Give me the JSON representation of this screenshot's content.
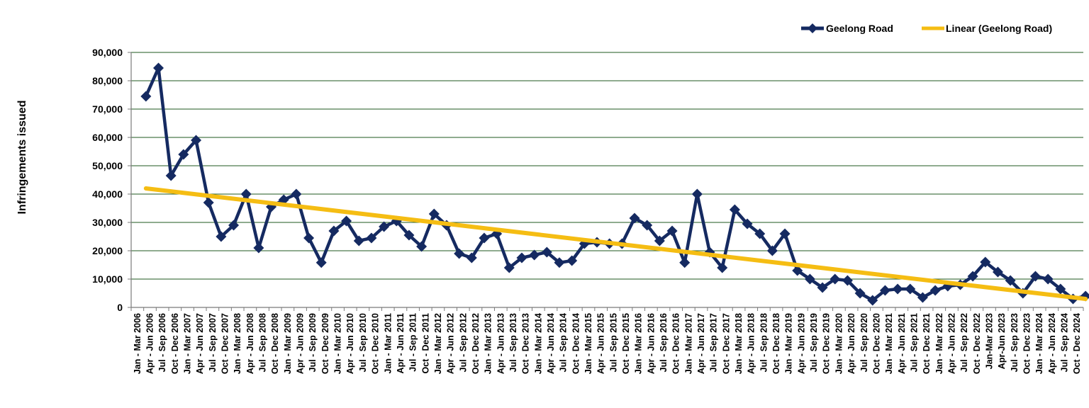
{
  "chart_data": {
    "type": "line",
    "ylabel": "Infringements issued",
    "xlabel": "",
    "ylim": [
      0,
      90000
    ],
    "yticks": [
      0,
      10000,
      20000,
      30000,
      40000,
      50000,
      60000,
      70000,
      80000,
      90000
    ],
    "ytick_labels": [
      "0",
      "10,000",
      "20,000",
      "30,000",
      "40,000",
      "50,000",
      "60,000",
      "70,000",
      "80,000",
      "90,000"
    ],
    "grid": "horizontal",
    "legend_position": "top-right",
    "colors": {
      "series": "#152a61",
      "trend": "#f5bd13",
      "grid": "#1f5a1f"
    },
    "categories": [
      "Jan - Mar 2006",
      "Apr - Jun 2006",
      "Jul - Sep 2006",
      "Oct - Dec 2006",
      "Jan - Mar 2007",
      "Apr - Jun 2007",
      "Jul - Sep 2007",
      "Oct - Dec 2007",
      "Jan - Mar 2008",
      "Apr - Jun 2008",
      "Jul - Sep 2008",
      "Oct - Dec 2008",
      "Jan - Mar 2009",
      "Apr - Jun 2009",
      "Jul - Sep 2009",
      "Oct - Dec 2009",
      "Jan - Mar 2010",
      "Apr - Jun 2010",
      "Jul - Sep 2010",
      "Oct - Dec 2010",
      "Jan - Mar 2011",
      "Apr - Jun 2011",
      "Jul - Sep 2011",
      "Oct - Dec 2011",
      "Jan - Mar 2012",
      "Apr - Jun 2012",
      "Jul - Sep 2012",
      "Oct - Dec 2012",
      "Jan - Mar 2013",
      "Apr - Jun 2013",
      "Jul - Sep 2013",
      "Oct - Dec 2013",
      "Jan - Mar 2014",
      "Apr - Jun 2014",
      "Jul - Sep 2014",
      "Oct - Dec 2014",
      "Jan - Mar 2015",
      "Apr - Jun 2015",
      "Jul - Sep 2015",
      "Oct - Dec 2015",
      "Jan - Mar 2016",
      "Apr - Jun 2016",
      "Jul - Sep 2016",
      "Oct - Dec 2016",
      "Jan - Mar 2017",
      "Apr - Jun 2017",
      "Jul - Sep 2017",
      "Oct - Dec 2017",
      "Jan - Mar 2018",
      "Apr - Jun 2018",
      "Jul - Sep 2018",
      "Oct - Dec 2018",
      "Jan - Mar 2019",
      "Apr - Jun 2019",
      "Jul - Sep 2019",
      "Oct - Dec 2019",
      "Jan - Mar 2020",
      "Apr - Jun 2020",
      "Jul - Sep 2020",
      "Oct - Dec 2020",
      "Jan - Mar 2021",
      "Apr - Jun 2021",
      "Jul - Sep 2021",
      "Oct - Dec 2021",
      "Jan - Mar 2022",
      "Apr - Jun 2022",
      "Jul - Sep 2022",
      "Oct - Dec 2022",
      "Jan-Mar 2023",
      "Apr-Jun 2023",
      "Jul - Sep 2023",
      "Oct - Dec 2023",
      "Jan - Mar 2024",
      "Apr - Jun 2024",
      "Jul - Sep 2024",
      "Oct - Dec 2024"
    ],
    "series": [
      {
        "name": "Geelong Road",
        "values": [
          74500,
          84500,
          46500,
          54000,
          59000,
          37000,
          25000,
          29000,
          40000,
          21000,
          35500,
          38000,
          40000,
          24500,
          15800,
          27000,
          30500,
          23500,
          24500,
          28500,
          30500,
          25500,
          21500,
          33000,
          29000,
          19000,
          17500,
          24500,
          26000,
          14000,
          17500,
          18500,
          19500,
          15800,
          16500,
          22500,
          23000,
          22500,
          22500,
          31500,
          29000,
          23500,
          27000,
          15800,
          40000,
          19500,
          14000,
          34500,
          29500,
          26000,
          20000,
          26000,
          13000,
          10000,
          7000,
          10000,
          9500,
          5000,
          2500,
          6000,
          6500,
          6500,
          3500,
          6000,
          7500,
          8000,
          11000,
          16000,
          12500,
          9500,
          5000,
          11000,
          10000,
          6500,
          3000,
          4000
        ]
      },
      {
        "name": "Linear (Geelong Road)",
        "type": "trendline",
        "values_endpoints": [
          42000,
          3000
        ]
      }
    ]
  }
}
